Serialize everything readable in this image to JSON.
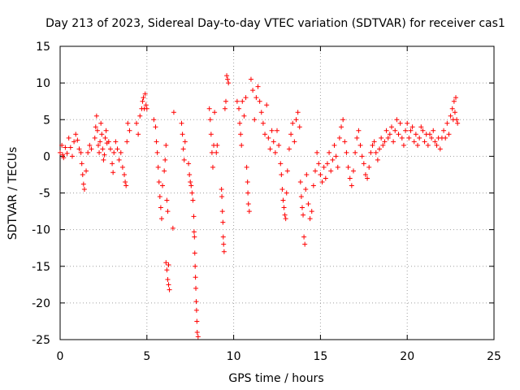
{
  "chart_data": {
    "type": "scatter",
    "title": "Day 213 of 2023, Sidereal Day-to-day VTEC variation (SDTVAR) for receiver cas1",
    "xlabel": "GPS time / hours",
    "ylabel": "SDTVAR / TECUs",
    "xlim": [
      0,
      25
    ],
    "ylim": [
      -25,
      15
    ],
    "xticks": [
      "0",
      "5",
      "10",
      "15",
      "20",
      "25"
    ],
    "yticks": [
      "15",
      "10",
      "5",
      "0",
      "-5",
      "-10",
      "-15",
      "-20",
      "-25"
    ],
    "grid": true,
    "marker": "+",
    "color": "#ff0000",
    "series": [
      {
        "name": "SDTVAR",
        "points": [
          [
            0.0,
            0.5
          ],
          [
            0.1,
            1.5
          ],
          [
            0.15,
            0.2
          ],
          [
            0.2,
            -0.2
          ],
          [
            0.3,
            1.2
          ],
          [
            0.4,
            0.4
          ],
          [
            0.5,
            2.5
          ],
          [
            0.6,
            1.2
          ],
          [
            0.7,
            0.0
          ],
          [
            0.8,
            2.0
          ],
          [
            0.9,
            3.0
          ],
          [
            1.0,
            2.2
          ],
          [
            1.1,
            1.0
          ],
          [
            1.2,
            0.5
          ],
          [
            1.25,
            -1.0
          ],
          [
            1.3,
            -2.5
          ],
          [
            1.35,
            -3.8
          ],
          [
            1.4,
            -4.5
          ],
          [
            1.5,
            -2.0
          ],
          [
            1.6,
            0.5
          ],
          [
            1.7,
            1.5
          ],
          [
            1.8,
            1.0
          ],
          [
            2.0,
            2.5
          ],
          [
            2.05,
            4.0
          ],
          [
            2.1,
            5.5
          ],
          [
            2.15,
            3.5
          ],
          [
            2.2,
            1.5
          ],
          [
            2.25,
            0.5
          ],
          [
            2.3,
            2.0
          ],
          [
            2.35,
            4.5
          ],
          [
            2.4,
            3.0
          ],
          [
            2.45,
            1.0
          ],
          [
            2.5,
            -0.5
          ],
          [
            2.55,
            0.2
          ],
          [
            2.6,
            2.5
          ],
          [
            2.65,
            3.5
          ],
          [
            2.7,
            1.8
          ],
          [
            2.8,
            2.0
          ],
          [
            2.9,
            1.0
          ],
          [
            3.0,
            -1.0
          ],
          [
            3.05,
            -2.2
          ],
          [
            3.1,
            0.5
          ],
          [
            3.2,
            2.0
          ],
          [
            3.3,
            1.0
          ],
          [
            3.4,
            -0.5
          ],
          [
            3.5,
            0.5
          ],
          [
            3.6,
            -1.5
          ],
          [
            3.7,
            -2.5
          ],
          [
            3.75,
            -3.5
          ],
          [
            3.8,
            -4.0
          ],
          [
            3.85,
            2.0
          ],
          [
            3.9,
            4.5
          ],
          [
            4.0,
            3.5
          ],
          [
            4.4,
            4.5
          ],
          [
            4.5,
            3.0
          ],
          [
            4.6,
            5.5
          ],
          [
            4.7,
            6.5
          ],
          [
            4.75,
            7.5
          ],
          [
            4.8,
            8.0
          ],
          [
            4.85,
            6.5
          ],
          [
            4.9,
            8.5
          ],
          [
            4.95,
            7.0
          ],
          [
            5.0,
            6.5
          ],
          [
            5.4,
            5.0
          ],
          [
            5.5,
            4.0
          ],
          [
            5.55,
            2.0
          ],
          [
            5.6,
            0.5
          ],
          [
            5.65,
            -1.5
          ],
          [
            5.7,
            -3.5
          ],
          [
            5.75,
            -5.5
          ],
          [
            5.8,
            -7.0
          ],
          [
            5.85,
            -8.5
          ],
          [
            5.9,
            -4.0
          ],
          [
            6.0,
            -2.0
          ],
          [
            6.05,
            -0.5
          ],
          [
            6.1,
            1.5
          ],
          [
            6.15,
            -6.0
          ],
          [
            6.2,
            -7.5
          ],
          [
            6.1,
            -14.5
          ],
          [
            6.15,
            -15.5
          ],
          [
            6.2,
            -16.8
          ],
          [
            6.25,
            -17.5
          ],
          [
            6.3,
            -18.2
          ],
          [
            6.25,
            -14.8
          ],
          [
            6.55,
            6.0
          ],
          [
            6.5,
            -9.8
          ],
          [
            7.0,
            4.5
          ],
          [
            7.05,
            3.0
          ],
          [
            7.1,
            1.0
          ],
          [
            7.15,
            -0.5
          ],
          [
            7.2,
            2.0
          ],
          [
            7.4,
            -1.0
          ],
          [
            7.45,
            -2.5
          ],
          [
            7.5,
            -3.5
          ],
          [
            7.55,
            -4.0
          ],
          [
            7.6,
            -5.0
          ],
          [
            7.65,
            -6.0
          ],
          [
            7.7,
            -8.2
          ],
          [
            7.72,
            -10.3
          ],
          [
            7.74,
            -11.0
          ],
          [
            7.76,
            -13.2
          ],
          [
            7.78,
            -15.0
          ],
          [
            7.8,
            -16.5
          ],
          [
            7.82,
            -18.0
          ],
          [
            7.84,
            -19.8
          ],
          [
            7.86,
            -21.0
          ],
          [
            7.88,
            -22.5
          ],
          [
            7.9,
            -24.0
          ],
          [
            7.95,
            -24.6
          ],
          [
            8.6,
            6.5
          ],
          [
            8.65,
            5.0
          ],
          [
            8.7,
            3.0
          ],
          [
            8.75,
            0.5
          ],
          [
            8.8,
            -1.5
          ],
          [
            8.85,
            1.5
          ],
          [
            8.9,
            6.0
          ],
          [
            9.0,
            0.5
          ],
          [
            9.05,
            1.5
          ],
          [
            9.3,
            -4.5
          ],
          [
            9.32,
            -5.5
          ],
          [
            9.35,
            -7.5
          ],
          [
            9.38,
            -9.0
          ],
          [
            9.4,
            -11.0
          ],
          [
            9.42,
            -12.0
          ],
          [
            9.45,
            -13.0
          ],
          [
            9.5,
            6.5
          ],
          [
            9.55,
            7.5
          ],
          [
            9.6,
            11.0
          ],
          [
            9.65,
            10.5
          ],
          [
            9.7,
            10.0
          ],
          [
            10.2,
            7.5
          ],
          [
            10.3,
            6.5
          ],
          [
            10.35,
            4.5
          ],
          [
            10.4,
            3.0
          ],
          [
            10.45,
            1.5
          ],
          [
            10.5,
            7.5
          ],
          [
            10.6,
            5.5
          ],
          [
            10.7,
            8.0
          ],
          [
            10.75,
            -1.5
          ],
          [
            10.8,
            -3.5
          ],
          [
            10.82,
            -5.0
          ],
          [
            10.85,
            -6.5
          ],
          [
            10.9,
            -7.5
          ],
          [
            11.0,
            10.5
          ],
          [
            11.1,
            9.0
          ],
          [
            11.2,
            5.0
          ],
          [
            11.3,
            8.0
          ],
          [
            11.4,
            9.5
          ],
          [
            11.5,
            7.5
          ],
          [
            11.6,
            6.0
          ],
          [
            11.7,
            4.5
          ],
          [
            11.8,
            3.0
          ],
          [
            11.9,
            7.0
          ],
          [
            12.0,
            2.5
          ],
          [
            12.1,
            1.0
          ],
          [
            12.2,
            3.5
          ],
          [
            12.3,
            2.0
          ],
          [
            12.4,
            0.5
          ],
          [
            12.5,
            3.5
          ],
          [
            12.6,
            1.5
          ],
          [
            12.7,
            -1.0
          ],
          [
            12.75,
            -2.5
          ],
          [
            12.8,
            -4.5
          ],
          [
            12.85,
            -6.0
          ],
          [
            12.9,
            -7.0
          ],
          [
            12.95,
            -8.0
          ],
          [
            13.0,
            -8.5
          ],
          [
            13.05,
            -5.0
          ],
          [
            13.1,
            -2.0
          ],
          [
            13.2,
            1.0
          ],
          [
            13.3,
            3.0
          ],
          [
            13.4,
            4.5
          ],
          [
            13.5,
            2.0
          ],
          [
            13.6,
            5.0
          ],
          [
            13.7,
            6.0
          ],
          [
            13.8,
            4.0
          ],
          [
            13.85,
            -3.5
          ],
          [
            13.9,
            -5.5
          ],
          [
            13.95,
            -7.0
          ],
          [
            14.0,
            -8.0
          ],
          [
            14.05,
            -11.0
          ],
          [
            14.1,
            -12.0
          ],
          [
            14.15,
            -4.5
          ],
          [
            14.2,
            -2.5
          ],
          [
            14.3,
            -6.5
          ],
          [
            14.4,
            -8.5
          ],
          [
            14.5,
            -7.5
          ],
          [
            14.6,
            -4.0
          ],
          [
            14.7,
            -2.0
          ],
          [
            14.8,
            0.5
          ],
          [
            14.9,
            -1.0
          ],
          [
            15.0,
            -2.5
          ],
          [
            15.1,
            -3.5
          ],
          [
            15.2,
            -1.5
          ],
          [
            15.3,
            -3.0
          ],
          [
            15.4,
            -1.0
          ],
          [
            15.5,
            0.5
          ],
          [
            15.6,
            -2.0
          ],
          [
            15.7,
            -0.5
          ],
          [
            15.8,
            1.5
          ],
          [
            15.9,
            0.0
          ],
          [
            16.0,
            -1.5
          ],
          [
            16.1,
            2.5
          ],
          [
            16.2,
            4.0
          ],
          [
            16.3,
            5.0
          ],
          [
            16.4,
            2.0
          ],
          [
            16.5,
            0.5
          ],
          [
            16.6,
            -1.5
          ],
          [
            16.7,
            -3.0
          ],
          [
            16.8,
            -4.0
          ],
          [
            16.9,
            -2.0
          ],
          [
            17.0,
            0.5
          ],
          [
            17.1,
            2.5
          ],
          [
            17.2,
            3.5
          ],
          [
            17.3,
            1.5
          ],
          [
            17.4,
            0.0
          ],
          [
            17.5,
            -1.0
          ],
          [
            17.6,
            -2.5
          ],
          [
            17.7,
            -3.0
          ],
          [
            17.8,
            -1.5
          ],
          [
            17.9,
            0.5
          ],
          [
            18.0,
            1.5
          ],
          [
            18.1,
            2.0
          ],
          [
            18.2,
            0.5
          ],
          [
            18.3,
            -0.5
          ],
          [
            18.4,
            1.0
          ],
          [
            18.5,
            2.5
          ],
          [
            18.6,
            1.5
          ],
          [
            18.7,
            2.0
          ],
          [
            18.8,
            3.5
          ],
          [
            18.9,
            2.5
          ],
          [
            19.0,
            3.0
          ],
          [
            19.1,
            4.0
          ],
          [
            19.2,
            2.0
          ],
          [
            19.3,
            3.5
          ],
          [
            19.4,
            5.0
          ],
          [
            19.5,
            3.0
          ],
          [
            19.6,
            4.5
          ],
          [
            19.7,
            2.5
          ],
          [
            19.8,
            1.5
          ],
          [
            19.9,
            3.5
          ],
          [
            20.0,
            4.5
          ],
          [
            20.1,
            2.5
          ],
          [
            20.2,
            3.5
          ],
          [
            20.3,
            4.0
          ],
          [
            20.4,
            2.0
          ],
          [
            20.5,
            3.0
          ],
          [
            20.6,
            1.5
          ],
          [
            20.7,
            2.5
          ],
          [
            20.8,
            4.0
          ],
          [
            20.9,
            3.5
          ],
          [
            21.0,
            2.0
          ],
          [
            21.1,
            3.0
          ],
          [
            21.2,
            1.5
          ],
          [
            21.3,
            3.0
          ],
          [
            21.4,
            2.5
          ],
          [
            21.5,
            3.5
          ],
          [
            21.6,
            2.0
          ],
          [
            21.7,
            1.5
          ],
          [
            21.8,
            2.5
          ],
          [
            21.9,
            1.0
          ],
          [
            22.0,
            2.5
          ],
          [
            22.1,
            3.5
          ],
          [
            22.2,
            2.5
          ],
          [
            22.3,
            4.5
          ],
          [
            22.4,
            3.0
          ],
          [
            22.5,
            5.5
          ],
          [
            22.6,
            6.5
          ],
          [
            22.65,
            5.0
          ],
          [
            22.7,
            7.5
          ],
          [
            22.75,
            6.0
          ],
          [
            22.8,
            8.0
          ],
          [
            22.85,
            5.0
          ],
          [
            22.9,
            4.5
          ]
        ]
      }
    ]
  }
}
